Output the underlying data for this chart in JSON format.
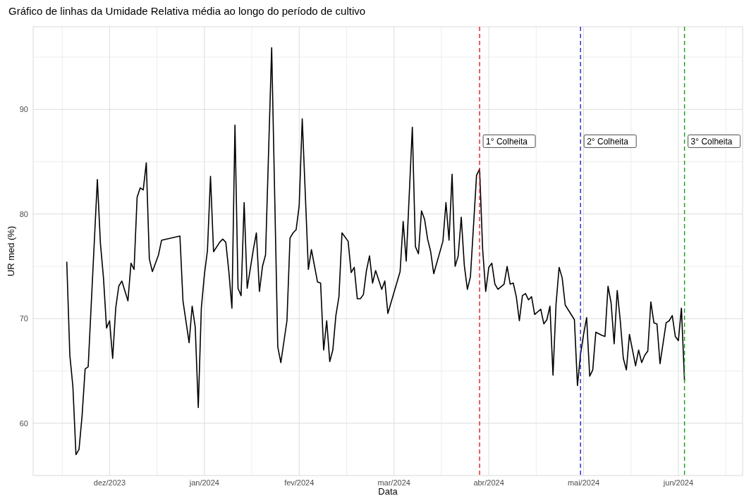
{
  "chart_data": {
    "type": "line",
    "title": "Gráfico de linhas da Umidade Relativa média ao longo do período de cultivo",
    "xlabel": "Data",
    "ylabel": "UR med (%)",
    "x": [
      "2023-11-17",
      "2023-11-18",
      "2023-11-19",
      "2023-11-20",
      "2023-11-21",
      "2023-11-22",
      "2023-11-23",
      "2023-11-24",
      "2023-11-27",
      "2023-11-28",
      "2023-11-29",
      "2023-11-30",
      "2023-12-01",
      "2023-12-02",
      "2023-12-03",
      "2023-12-04",
      "2023-12-05",
      "2023-12-07",
      "2023-12-08",
      "2023-12-09",
      "2023-12-10",
      "2023-12-11",
      "2023-12-12",
      "2023-12-13",
      "2023-12-14",
      "2023-12-15",
      "2023-12-17",
      "2023-12-18",
      "2023-12-24",
      "2023-12-25",
      "2023-12-27",
      "2023-12-28",
      "2023-12-29",
      "2023-12-30",
      "2023-12-31",
      "2024-01-01",
      "2024-01-02",
      "2024-01-03",
      "2024-01-04",
      "2024-01-06",
      "2024-01-07",
      "2024-01-08",
      "2024-01-09",
      "2024-01-10",
      "2024-01-11",
      "2024-01-12",
      "2024-01-13",
      "2024-01-14",
      "2024-01-15",
      "2024-01-17",
      "2024-01-18",
      "2024-01-19",
      "2024-01-20",
      "2024-01-21",
      "2024-01-23",
      "2024-01-25",
      "2024-01-26",
      "2024-01-28",
      "2024-01-29",
      "2024-01-30",
      "2024-01-31",
      "2024-02-01",
      "2024-02-02",
      "2024-02-04",
      "2024-02-05",
      "2024-02-07",
      "2024-02-08",
      "2024-02-09",
      "2024-02-10",
      "2024-02-11",
      "2024-02-12",
      "2024-02-13",
      "2024-02-14",
      "2024-02-15",
      "2024-02-17",
      "2024-02-18",
      "2024-02-19",
      "2024-02-20",
      "2024-02-21",
      "2024-02-22",
      "2024-02-23",
      "2024-02-24",
      "2024-02-25",
      "2024-02-26",
      "2024-02-28",
      "2024-02-29",
      "2024-03-01",
      "2024-03-05",
      "2024-03-06",
      "2024-03-07",
      "2024-03-09",
      "2024-03-10",
      "2024-03-11",
      "2024-03-12",
      "2024-03-13",
      "2024-03-14",
      "2024-03-15",
      "2024-03-16",
      "2024-03-19",
      "2024-03-20",
      "2024-03-21",
      "2024-03-22",
      "2024-03-23",
      "2024-03-24",
      "2024-03-25",
      "2024-03-26",
      "2024-03-27",
      "2024-03-28",
      "2024-03-30",
      "2024-03-31",
      "2024-04-01",
      "2024-04-02",
      "2024-04-03",
      "2024-04-04",
      "2024-04-05",
      "2024-04-06",
      "2024-04-08",
      "2024-04-09",
      "2024-04-10",
      "2024-04-11",
      "2024-04-12",
      "2024-04-13",
      "2024-04-14",
      "2024-04-15",
      "2024-04-16",
      "2024-04-17",
      "2024-04-18",
      "2024-04-20",
      "2024-04-21",
      "2024-04-22",
      "2024-04-23",
      "2024-04-24",
      "2024-04-25",
      "2024-04-26",
      "2024-04-27",
      "2024-04-28",
      "2024-05-01",
      "2024-05-02",
      "2024-05-03",
      "2024-05-04",
      "2024-05-05",
      "2024-05-06",
      "2024-05-07",
      "2024-05-08",
      "2024-05-10",
      "2024-05-11",
      "2024-05-12",
      "2024-05-13",
      "2024-05-14",
      "2024-05-15",
      "2024-05-16",
      "2024-05-17",
      "2024-05-18",
      "2024-05-19",
      "2024-05-21",
      "2024-05-22",
      "2024-05-23",
      "2024-05-24",
      "2024-05-25",
      "2024-05-26",
      "2024-05-27",
      "2024-05-28",
      "2024-05-29",
      "2024-05-31",
      "2024-06-01",
      "2024-06-02",
      "2024-06-03",
      "2024-06-04",
      "2024-06-05",
      "2024-06-06"
    ],
    "series": [
      {
        "color": "#000000",
        "values": [
          75.4,
          66.5,
          63.5,
          57.0,
          57.5,
          60.7,
          65.2,
          65.4,
          83.3,
          77.2,
          73.9,
          69.1,
          69.8,
          66.2,
          71.0,
          73.1,
          73.6,
          71.7,
          75.3,
          74.7,
          81.6,
          82.5,
          82.3,
          84.9,
          75.7,
          74.5,
          76.1,
          77.5,
          77.9,
          71.7,
          67.7,
          71.2,
          69.2,
          61.5,
          71.0,
          74.2,
          76.5,
          83.6,
          76.4,
          77.3,
          77.6,
          77.3,
          74.5,
          71.0,
          88.5,
          72.9,
          72.2,
          81.1,
          72.9,
          76.6,
          78.2,
          72.6,
          75.0,
          76.1,
          95.9,
          67.3,
          65.8,
          69.8,
          77.7,
          78.2,
          78.5,
          80.8,
          89.1,
          74.7,
          76.6,
          73.5,
          73.4,
          67.0,
          69.8,
          65.9,
          67.0,
          70.3,
          72.1,
          78.2,
          77.4,
          74.4,
          74.9,
          71.9,
          71.9,
          72.3,
          74.6,
          76.0,
          73.4,
          74.6,
          72.8,
          73.6,
          70.5,
          74.5,
          79.3,
          75.5,
          88.3,
          76.9,
          76.2,
          80.3,
          79.5,
          77.6,
          76.4,
          74.3,
          77.4,
          81.1,
          77.5,
          83.8,
          75.0,
          76.0,
          79.7,
          75.1,
          72.8,
          74.0,
          83.7,
          84.3,
          76.6,
          72.6,
          74.9,
          75.3,
          73.3,
          72.8,
          73.3,
          75.0,
          73.3,
          73.4,
          72.1,
          69.8,
          72.2,
          72.4,
          71.8,
          72.1,
          70.4,
          70.9,
          69.5,
          69.9,
          71.2,
          64.6,
          71.4,
          74.9,
          73.9,
          71.3,
          69.9,
          63.6,
          66.6,
          68.5,
          70.1,
          64.5,
          65.1,
          68.7,
          68.4,
          68.3,
          73.1,
          71.5,
          67.6,
          72.7,
          69.8,
          66.2,
          65.1,
          68.5,
          65.5,
          67.0,
          65.8,
          66.5,
          66.9,
          71.6,
          69.6,
          69.5,
          65.7,
          69.6,
          69.8,
          70.3,
          68.3,
          67.9,
          71.0,
          64.1
        ]
      }
    ],
    "xlim": [
      "2023-11-06",
      "2024-06-25"
    ],
    "xticks": [
      {
        "value": "2023-11-15T12:00",
        "label": null
      },
      {
        "value": "2023-12-01",
        "label": "dez/2023"
      },
      {
        "value": "2023-12-16T12:00",
        "label": null
      },
      {
        "value": "2024-01-01",
        "label": "jan/2024"
      },
      {
        "value": "2024-01-16T12:00",
        "label": null
      },
      {
        "value": "2024-02-01",
        "label": "fev/2024"
      },
      {
        "value": "2024-02-16T12:00",
        "label": null
      },
      {
        "value": "2024-03-03",
        "label": "mar/2024"
      },
      {
        "value": "2024-03-18T12:00",
        "label": null
      },
      {
        "value": "2024-04-03",
        "label": "abr/2024"
      },
      {
        "value": "2024-04-18T12:00",
        "label": null
      },
      {
        "value": "2024-05-04",
        "label": "mai/2024"
      },
      {
        "value": "2024-05-19T12:00",
        "label": null
      },
      {
        "value": "2024-06-04",
        "label": "jun/2024"
      },
      {
        "value": "2024-06-19T12:00",
        "label": null
      }
    ],
    "ylim": [
      55,
      97.9
    ],
    "yticks": [
      60,
      {
        "value": 65,
        "label": null
      },
      70,
      {
        "value": 75,
        "label": null
      },
      80,
      {
        "value": 85,
        "label": null
      },
      90,
      {
        "value": 95,
        "label": null
      }
    ],
    "grid": true,
    "line_style": "solid",
    "ref_lines": [
      {
        "axis": "x",
        "value": "2024-03-31",
        "label": "1° Colheita",
        "color": "#e41a1c",
        "line_style": "dashed"
      },
      {
        "axis": "x",
        "value": "2024-05-03",
        "label": "2° Colheita",
        "color": "#2222cc",
        "line_style": "dashed"
      },
      {
        "axis": "x",
        "value": "2024-06-06",
        "label": "3° Colheita",
        "color": "#10a010",
        "line_style": "dashed"
      }
    ]
  }
}
